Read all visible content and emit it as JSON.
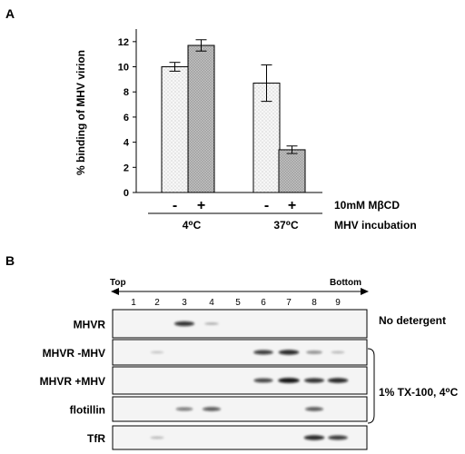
{
  "panel_a": {
    "label": "A",
    "chart_data": {
      "type": "bar",
      "ylabel": "% binding of MHV virion",
      "ylim": [
        0,
        13
      ],
      "yticks": [
        0,
        2,
        4,
        6,
        8,
        10,
        12
      ],
      "groups": [
        "4⁰C",
        "37⁰C"
      ],
      "categories": [
        "-",
        "+",
        "-",
        "+"
      ],
      "values": [
        10.0,
        11.7,
        8.7,
        3.4
      ],
      "errors": [
        0.35,
        0.45,
        1.45,
        0.3
      ],
      "bar_fills": [
        "#f2f2f2",
        "#b5b5b5",
        "#f2f2f2",
        "#b5b5b5"
      ],
      "condition_row_label": "10mM MβCD",
      "group_row_label": "MHV incubation"
    }
  },
  "panel_b": {
    "label": "B",
    "top_label": "Top",
    "bottom_label": "Bottom",
    "lanes": [
      "1",
      "2",
      "3",
      "4",
      "5",
      "6",
      "7",
      "8",
      "9"
    ],
    "rows": [
      {
        "name": "MHVR",
        "bands": [
          0,
          0,
          0.8,
          0.15,
          0,
          0,
          0,
          0,
          0
        ]
      },
      {
        "name": "MHVR -MHV",
        "bands": [
          0,
          0.05,
          0,
          0,
          0,
          0.75,
          0.85,
          0.35,
          0.1
        ]
      },
      {
        "name": "MHVR +MHV",
        "bands": [
          0,
          0,
          0,
          0,
          0,
          0.7,
          0.95,
          0.8,
          0.85
        ]
      },
      {
        "name": "flotillin",
        "bands": [
          0,
          0,
          0.45,
          0.6,
          0,
          0,
          0,
          0.6,
          0
        ]
      },
      {
        "name": "TfR",
        "bands": [
          0,
          0.1,
          0,
          0,
          0,
          0,
          0,
          0.85,
          0.75
        ]
      }
    ],
    "no_detergent_label": "No detergent",
    "detergent_label": "1% TX-100, 4⁰C"
  }
}
